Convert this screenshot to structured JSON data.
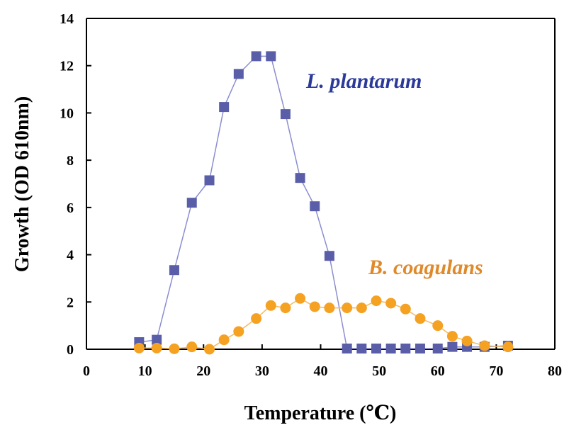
{
  "chart_data": {
    "type": "line",
    "xlabel": "Temperature (℃)",
    "ylabel": "Growth  (OD 610nm)",
    "xlim": [
      0,
      80
    ],
    "ylim": [
      0,
      14
    ],
    "x_ticks": [
      0,
      10,
      20,
      30,
      40,
      50,
      60,
      70,
      80
    ],
    "y_ticks": [
      0,
      2,
      4,
      6,
      8,
      10,
      12,
      14
    ],
    "grid": false,
    "legend": "inline labels",
    "series": [
      {
        "name": "L. plantarum",
        "marker": "square",
        "color": "#5a5ea8",
        "line_color": "#8a8ed0",
        "label_color": "#2b3a9a",
        "x": [
          9,
          12,
          15,
          18,
          21,
          23.5,
          26,
          29,
          31.5,
          34,
          36.5,
          39,
          41.5,
          44.5,
          47,
          49.5,
          52,
          54.5,
          57,
          60,
          62.5,
          65,
          68,
          72
        ],
        "y": [
          0.3,
          0.4,
          3.35,
          6.2,
          7.15,
          10.25,
          11.65,
          12.4,
          12.4,
          9.95,
          7.25,
          6.05,
          3.95,
          0.03,
          0.03,
          0.03,
          0.03,
          0.03,
          0.03,
          0.03,
          0.1,
          0.1,
          0.1,
          0.15
        ]
      },
      {
        "name": "B. coagulans",
        "marker": "circle",
        "color": "#f5a122",
        "line_color": "#f5b860",
        "label_color": "#e0892a",
        "x": [
          9,
          12,
          15,
          18,
          21,
          23.5,
          26,
          29,
          31.5,
          34,
          36.5,
          39,
          41.5,
          44.5,
          47,
          49.5,
          52,
          54.5,
          57,
          60,
          62.5,
          65,
          68,
          72
        ],
        "y": [
          0.05,
          0.05,
          0.02,
          0.1,
          0.0,
          0.4,
          0.75,
          1.3,
          1.85,
          1.75,
          2.15,
          1.8,
          1.75,
          1.75,
          1.75,
          2.05,
          1.95,
          1.7,
          1.3,
          1.0,
          0.55,
          0.35,
          0.15,
          0.1
        ]
      }
    ]
  }
}
